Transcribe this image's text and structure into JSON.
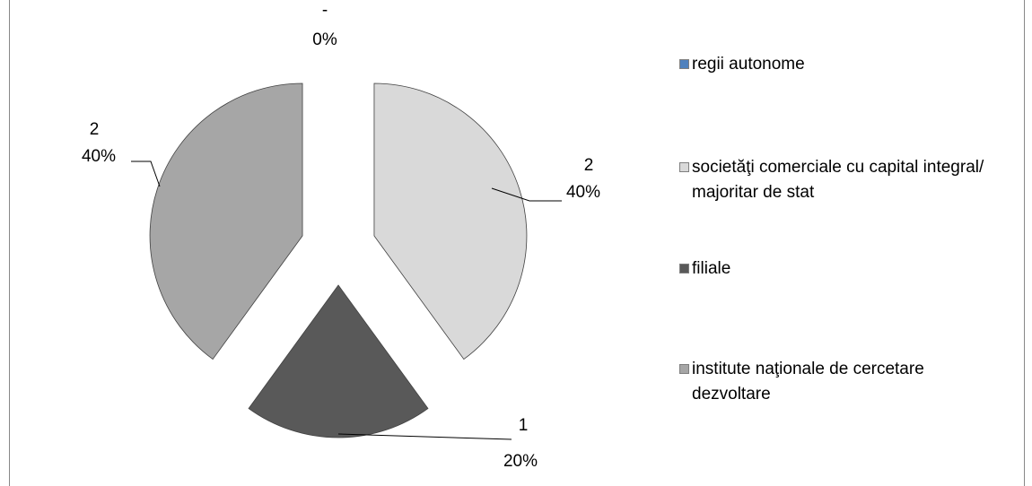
{
  "chart_data": {
    "type": "pie",
    "categories": [
      "regii autonome",
      "societăţi comerciale cu capital integral/ majoritar de stat",
      "filiale",
      "institute naţionale de cercetare dezvoltare"
    ],
    "values": [
      0,
      2,
      1,
      2
    ],
    "value_labels": [
      "-",
      "2",
      "1",
      "2"
    ],
    "percents": [
      0,
      40,
      20,
      40
    ],
    "percent_labels": [
      "0%",
      "40%",
      "20%",
      "40%"
    ],
    "colors": [
      "#4f81bd",
      "#d9d9d9",
      "#595959",
      "#a6a6a6"
    ],
    "legend": "right"
  }
}
